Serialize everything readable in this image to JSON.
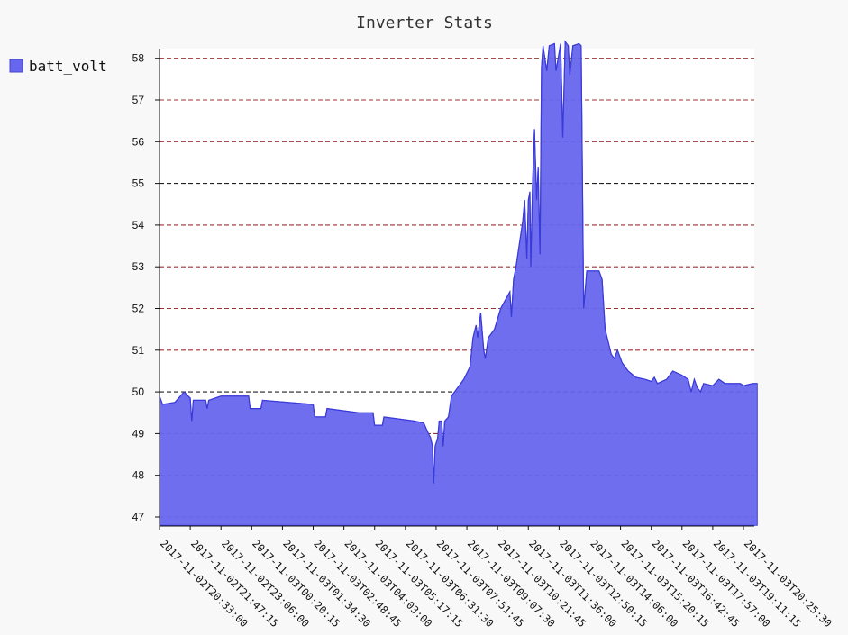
{
  "chart_data": {
    "type": "area",
    "title": "Inverter Stats",
    "xlabel": "",
    "ylabel": "",
    "ylim": [
      46.8,
      58.2
    ],
    "yticks": [
      47,
      48,
      49,
      50,
      51,
      52,
      53,
      54,
      55,
      56,
      57,
      58
    ],
    "grid": "horizontal dashed",
    "legend_position": "top-left",
    "x_labels": [
      "2017-11-02T20:33:00",
      "2017-11-02T21:47:15",
      "2017-11-02T23:06:00",
      "2017-11-03T00:20:15",
      "2017-11-03T01:34:30",
      "2017-11-03T02:48:45",
      "2017-11-03T04:03:00",
      "2017-11-03T05:17:15",
      "2017-11-03T06:31:30",
      "2017-11-03T07:51:45",
      "2017-11-03T09:07:30",
      "2017-11-03T10:21:45",
      "2017-11-03T11:36:00",
      "2017-11-03T12:50:15",
      "2017-11-03T14:06:00",
      "2017-11-03T15:20:15",
      "2017-11-03T16:42:45",
      "2017-11-03T17:57:00",
      "2017-11-03T19:11:15",
      "2017-11-03T20:25:30"
    ],
    "series": [
      {
        "name": "batt_volt",
        "color": "#6666ee",
        "points": [
          [
            0,
            49.9
          ],
          [
            0.1,
            49.7
          ],
          [
            0.5,
            49.75
          ],
          [
            0.8,
            50.0
          ],
          [
            1.0,
            49.85
          ],
          [
            1.05,
            49.3
          ],
          [
            1.1,
            49.8
          ],
          [
            1.5,
            49.8
          ],
          [
            1.55,
            49.6
          ],
          [
            1.6,
            49.8
          ],
          [
            2.0,
            49.9
          ],
          [
            2.9,
            49.9
          ],
          [
            2.95,
            49.6
          ],
          [
            3.3,
            49.6
          ],
          [
            3.35,
            49.8
          ],
          [
            5.0,
            49.7
          ],
          [
            5.05,
            49.4
          ],
          [
            5.4,
            49.4
          ],
          [
            5.45,
            49.6
          ],
          [
            6.5,
            49.5
          ],
          [
            6.95,
            49.5
          ],
          [
            7.0,
            49.2
          ],
          [
            7.25,
            49.2
          ],
          [
            7.3,
            49.4
          ],
          [
            8.3,
            49.3
          ],
          [
            8.6,
            49.25
          ],
          [
            8.75,
            49.0
          ],
          [
            8.82,
            48.9
          ],
          [
            8.88,
            48.7
          ],
          [
            8.92,
            47.8
          ],
          [
            8.97,
            48.7
          ],
          [
            9.05,
            48.9
          ],
          [
            9.1,
            49.3
          ],
          [
            9.18,
            49.3
          ],
          [
            9.23,
            48.7
          ],
          [
            9.28,
            49.3
          ],
          [
            9.4,
            49.4
          ],
          [
            9.5,
            49.9
          ],
          [
            9.7,
            50.1
          ],
          [
            9.9,
            50.3
          ],
          [
            10.1,
            50.6
          ],
          [
            10.2,
            51.3
          ],
          [
            10.3,
            51.6
          ],
          [
            10.35,
            51.3
          ],
          [
            10.45,
            51.9
          ],
          [
            10.55,
            51.0
          ],
          [
            10.6,
            50.8
          ],
          [
            10.7,
            51.3
          ],
          [
            10.9,
            51.5
          ],
          [
            11.1,
            52.0
          ],
          [
            11.25,
            52.2
          ],
          [
            11.4,
            52.4
          ],
          [
            11.45,
            51.8
          ],
          [
            11.52,
            52.7
          ],
          [
            11.6,
            53.0
          ],
          [
            11.7,
            53.5
          ],
          [
            11.82,
            54.1
          ],
          [
            11.88,
            54.6
          ],
          [
            11.95,
            53.2
          ],
          [
            12.0,
            54.6
          ],
          [
            12.05,
            54.8
          ],
          [
            12.08,
            53.0
          ],
          [
            12.14,
            55.0
          ],
          [
            12.2,
            56.3
          ],
          [
            12.27,
            54.6
          ],
          [
            12.32,
            55.4
          ],
          [
            12.38,
            53.3
          ],
          [
            12.43,
            57.8
          ],
          [
            12.48,
            58.3
          ],
          [
            12.6,
            57.7
          ],
          [
            12.68,
            58.3
          ],
          [
            12.85,
            58.35
          ],
          [
            12.9,
            57.7
          ],
          [
            13.05,
            58.35
          ],
          [
            13.12,
            56.1
          ],
          [
            13.2,
            58.4
          ],
          [
            13.3,
            58.3
          ],
          [
            13.35,
            57.6
          ],
          [
            13.45,
            58.3
          ],
          [
            13.65,
            58.35
          ],
          [
            13.72,
            58.3
          ],
          [
            13.8,
            52.0
          ],
          [
            13.9,
            52.9
          ],
          [
            14.3,
            52.9
          ],
          [
            14.4,
            52.7
          ],
          [
            14.5,
            51.5
          ],
          [
            14.6,
            51.2
          ],
          [
            14.7,
            50.9
          ],
          [
            14.8,
            50.8
          ],
          [
            14.9,
            51.0
          ],
          [
            15.05,
            50.7
          ],
          [
            15.25,
            50.5
          ],
          [
            15.5,
            50.35
          ],
          [
            15.8,
            50.3
          ],
          [
            16.0,
            50.25
          ],
          [
            16.1,
            50.35
          ],
          [
            16.2,
            50.2
          ],
          [
            16.5,
            50.3
          ],
          [
            16.7,
            50.5
          ],
          [
            17.0,
            50.4
          ],
          [
            17.2,
            50.3
          ],
          [
            17.3,
            50.0
          ],
          [
            17.4,
            50.3
          ],
          [
            17.5,
            50.1
          ],
          [
            17.6,
            50.0
          ],
          [
            17.7,
            50.2
          ],
          [
            18.0,
            50.15
          ],
          [
            18.2,
            50.3
          ],
          [
            18.4,
            50.2
          ],
          [
            18.9,
            50.2
          ],
          [
            19.0,
            50.15
          ],
          [
            19.3,
            50.2
          ],
          [
            19.45,
            50.2
          ]
        ]
      }
    ]
  }
}
